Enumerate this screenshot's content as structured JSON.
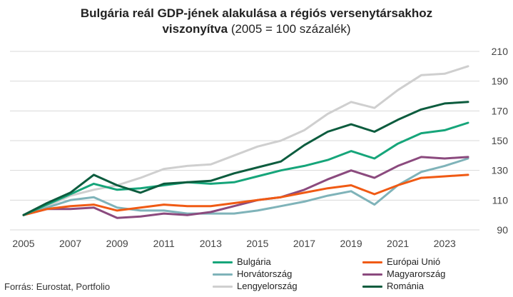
{
  "title_line1": "Bulgária reál GDP-jének alakulása a régiós versenytársakhoz",
  "title_line2_bold": "viszonyítva",
  "title_line2_rest": " (2005 = 100 százalék)",
  "source": "Forrás: Eurostat, Portfolio",
  "chart_data": {
    "type": "line",
    "title": "Bulgária reál GDP-jének alakulása a régiós versenytársakhoz viszonyítva (2005 = 100 százalék)",
    "x": [
      2005,
      2006,
      2007,
      2008,
      2009,
      2010,
      2011,
      2012,
      2013,
      2014,
      2015,
      2016,
      2017,
      2018,
      2019,
      2020,
      2021,
      2022,
      2023,
      2024
    ],
    "xticks": [
      2005,
      2007,
      2009,
      2011,
      2013,
      2015,
      2017,
      2019,
      2021,
      2023
    ],
    "xlim": [
      2005,
      2024
    ],
    "ylim": [
      90,
      210
    ],
    "yticks": [
      90,
      110,
      130,
      150,
      170,
      190,
      210
    ],
    "yaxis_side": "right",
    "grid": true,
    "legend_position": "bottom",
    "series": [
      {
        "name": "Bulgária",
        "color": "#16a57a",
        "values": [
          100,
          107,
          114,
          121,
          117,
          118,
          120,
          122,
          121,
          122,
          126,
          130,
          133,
          137,
          143,
          138,
          148,
          155,
          157,
          162
        ]
      },
      {
        "name": "Európai Unió",
        "color": "#f05a14",
        "values": [
          100,
          104,
          106,
          107,
          103,
          105,
          107,
          106,
          106,
          108,
          110,
          112,
          115,
          118,
          120,
          114,
          120,
          125,
          126,
          127
        ]
      },
      {
        "name": "Horvátország",
        "color": "#7fb3b9",
        "values": [
          100,
          105,
          110,
          112,
          105,
          103,
          103,
          101,
          101,
          101,
          103,
          106,
          109,
          113,
          116,
          107,
          120,
          129,
          133,
          138
        ]
      },
      {
        "name": "Magyarország",
        "color": "#8b4a7e",
        "values": [
          100,
          104,
          104,
          105,
          98,
          99,
          101,
          100,
          102,
          106,
          110,
          112,
          117,
          124,
          130,
          125,
          133,
          139,
          138,
          139
        ]
      },
      {
        "name": "Lengyelország",
        "color": "#cfcfcf",
        "values": [
          100,
          106,
          113,
          117,
          120,
          125,
          131,
          133,
          134,
          140,
          146,
          150,
          157,
          168,
          176,
          172,
          184,
          194,
          195,
          200
        ]
      },
      {
        "name": "Románia",
        "color": "#0c5c3e",
        "values": [
          100,
          108,
          115,
          127,
          120,
          115,
          121,
          122,
          123,
          128,
          132,
          136,
          147,
          156,
          161,
          156,
          164,
          171,
          175,
          176
        ]
      }
    ]
  }
}
